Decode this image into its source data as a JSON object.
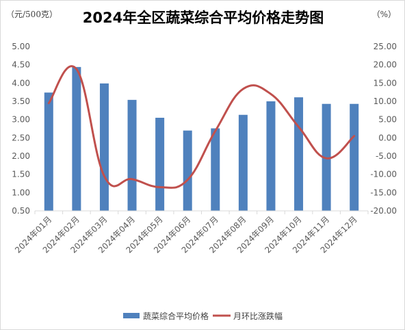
{
  "chart_data": {
    "type": "bar",
    "title": "2024年全区蔬菜综合平均价格走势图",
    "left_unit": "（元/500克）",
    "right_unit": "（%）",
    "categories": [
      "2024年01月",
      "2024年02月",
      "2024年03月",
      "2024年04月",
      "2024年05月",
      "2024年06月",
      "2024年07月",
      "2024年08月",
      "2024年09月",
      "2024年10月",
      "2024年11月",
      "2024年12月"
    ],
    "series": [
      {
        "name": "蔬菜综合平均价格",
        "type": "bar",
        "axis": "left",
        "color": "#4f81bd",
        "values": [
          3.74,
          4.44,
          3.99,
          3.54,
          3.05,
          2.7,
          2.76,
          3.13,
          3.5,
          3.61,
          3.43,
          3.43
        ]
      },
      {
        "name": "月环比涨跌幅",
        "type": "line",
        "axis": "right",
        "smooth": true,
        "color": "#c0504d",
        "values": [
          9.5,
          18.8,
          -10.5,
          -11.3,
          -13.5,
          -11.5,
          1.9,
          13.4,
          12.0,
          3.0,
          -5.6,
          0.5
        ]
      }
    ],
    "y_left": {
      "min": 0.5,
      "max": 5.0,
      "ticks": [
        "0.50",
        "1.00",
        "1.50",
        "2.00",
        "2.50",
        "3.00",
        "3.50",
        "4.00",
        "4.50",
        "5.00"
      ]
    },
    "y_right": {
      "min": -20,
      "max": 25,
      "ticks": [
        "-20.00",
        "-15.00",
        "-10.00",
        "-5.00",
        "0.00",
        "5.00",
        "10.00",
        "15.00",
        "20.00",
        "25.00"
      ]
    },
    "grid": false,
    "legend_position": "bottom"
  }
}
